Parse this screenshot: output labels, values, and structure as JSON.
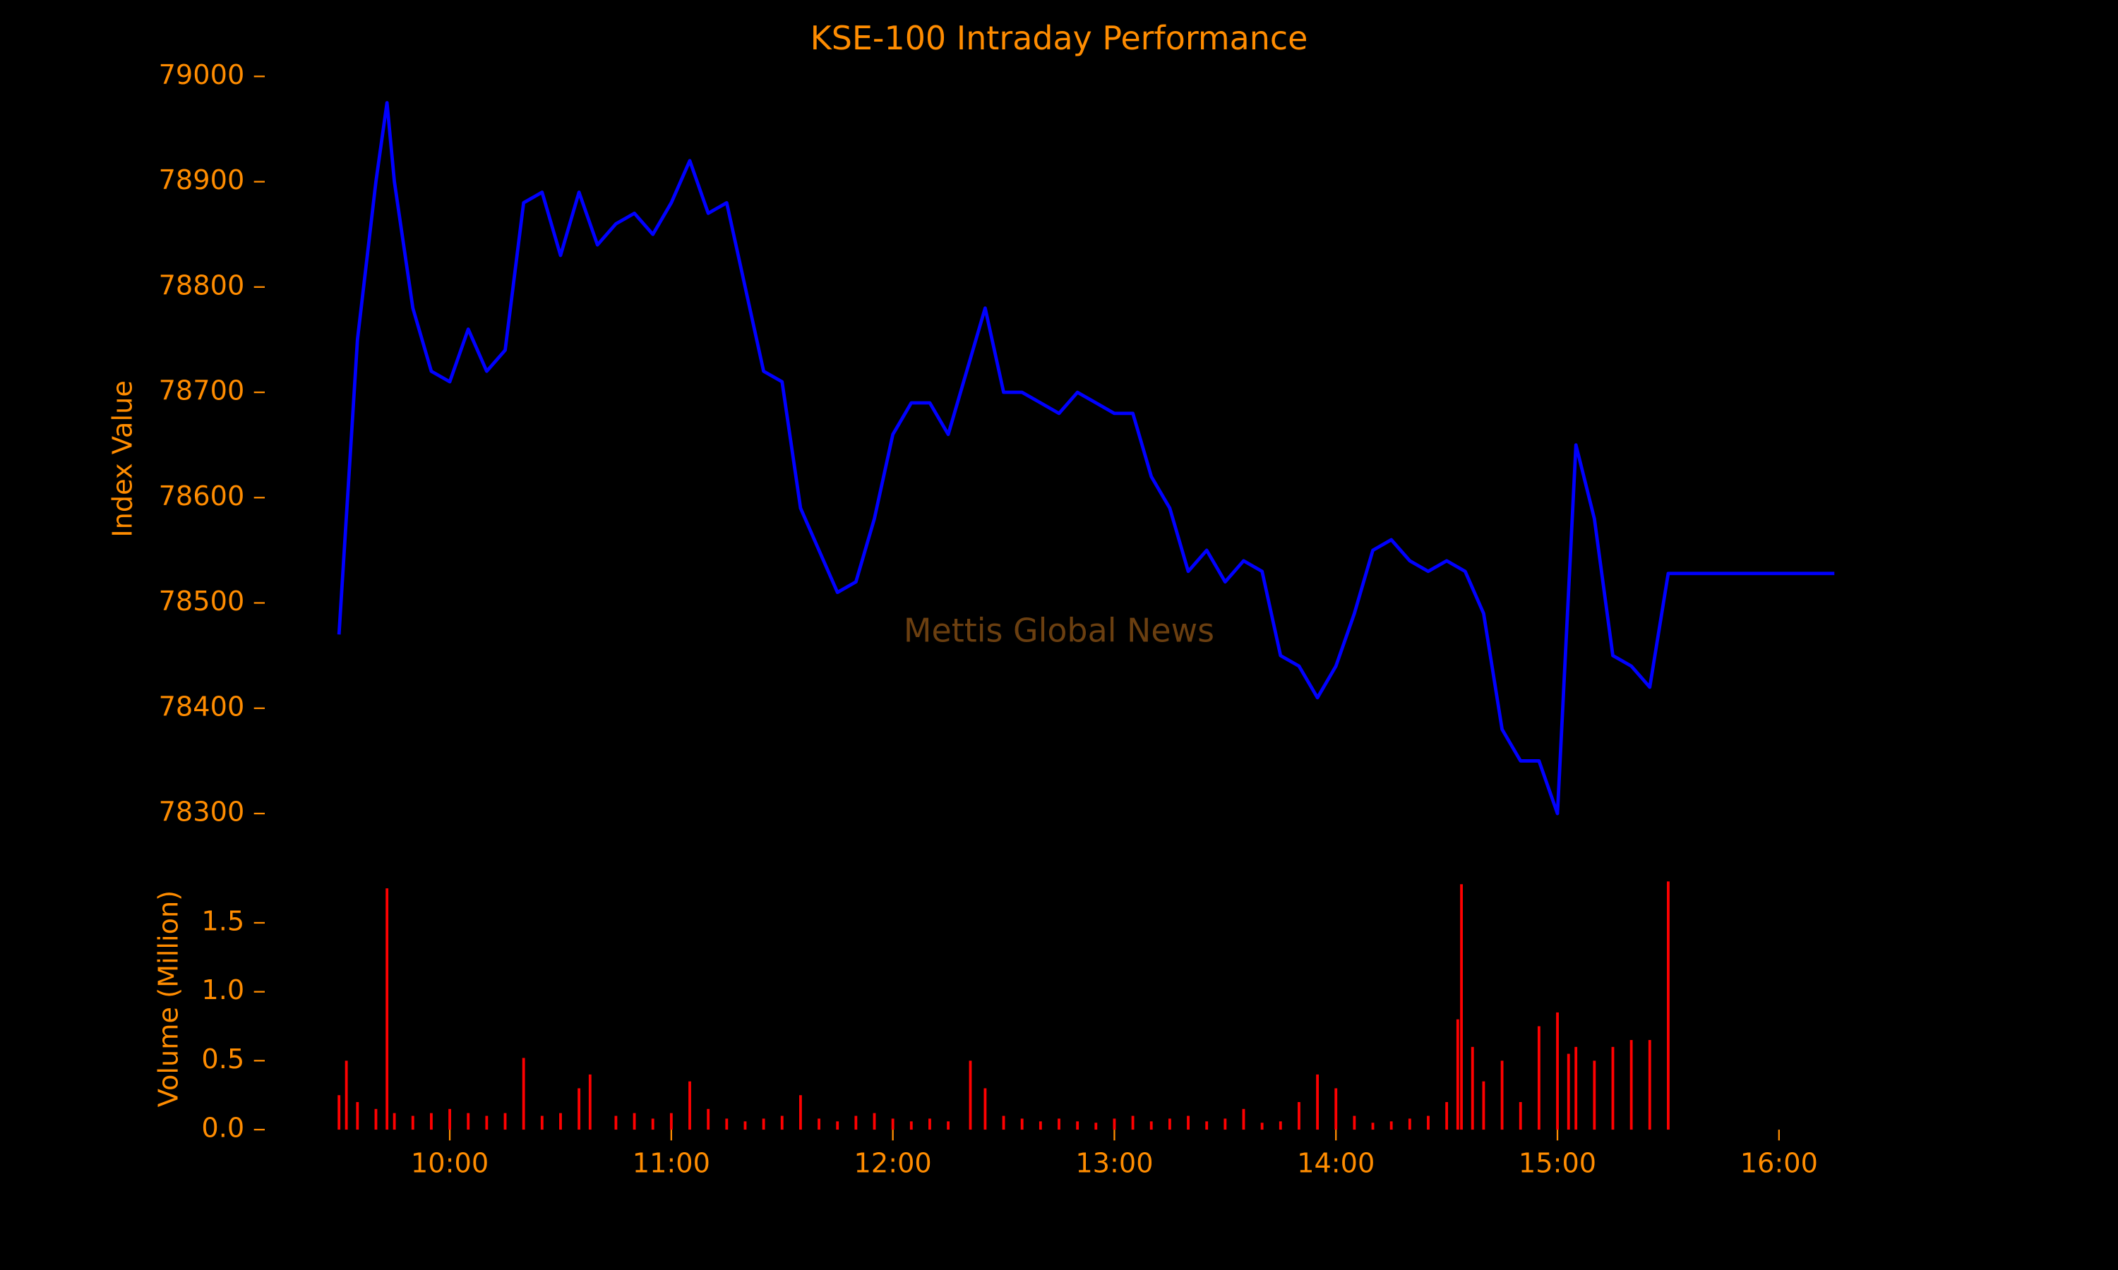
{
  "chart_data": [
    {
      "type": "line",
      "title": "KSE-100 Intraday Performance",
      "ylabel": "Index Value",
      "annotation": "Mettis Global News",
      "x": [
        "09:30",
        "09:35",
        "09:40",
        "09:43",
        "09:45",
        "09:50",
        "09:55",
        "10:00",
        "10:05",
        "10:10",
        "10:15",
        "10:20",
        "10:25",
        "10:30",
        "10:35",
        "10:40",
        "10:45",
        "10:50",
        "10:55",
        "11:00",
        "11:05",
        "11:10",
        "11:15",
        "11:20",
        "11:25",
        "11:30",
        "11:35",
        "11:40",
        "11:45",
        "11:50",
        "11:55",
        "12:00",
        "12:05",
        "12:10",
        "12:15",
        "12:20",
        "12:25",
        "12:30",
        "12:35",
        "12:40",
        "12:45",
        "12:50",
        "12:55",
        "13:00",
        "13:05",
        "13:10",
        "13:15",
        "13:20",
        "13:25",
        "13:30",
        "13:35",
        "13:40",
        "13:45",
        "13:50",
        "13:55",
        "14:00",
        "14:05",
        "14:10",
        "14:15",
        "14:20",
        "14:25",
        "14:30",
        "14:35",
        "14:40",
        "14:45",
        "14:50",
        "14:55",
        "15:00",
        "15:05",
        "15:10",
        "15:15",
        "15:20",
        "15:25",
        "15:30",
        "16:15"
      ],
      "series": [
        {
          "name": "KSE-100",
          "color": "#0000ff",
          "values": [
            78470,
            78750,
            78900,
            78975,
            78900,
            78780,
            78720,
            78710,
            78760,
            78720,
            78740,
            78880,
            78890,
            78830,
            78890,
            78840,
            78860,
            78870,
            78850,
            78880,
            78920,
            78870,
            78880,
            78800,
            78720,
            78710,
            78590,
            78550,
            78510,
            78520,
            78580,
            78660,
            78690,
            78690,
            78660,
            78720,
            78780,
            78700,
            78700,
            78690,
            78680,
            78700,
            78690,
            78680,
            78680,
            78620,
            78590,
            78530,
            78550,
            78520,
            78540,
            78530,
            78450,
            78440,
            78410,
            78440,
            78490,
            78550,
            78560,
            78540,
            78530,
            78540,
            78530,
            78490,
            78380,
            78350,
            78350,
            78300,
            78650,
            78580,
            78450,
            78440,
            78420,
            78528,
            78528
          ]
        }
      ],
      "xlim": [
        "09:10",
        "16:35"
      ],
      "ylim": [
        78260,
        79020
      ],
      "yticks": [
        78300,
        78400,
        78500,
        78600,
        78700,
        78800,
        78900,
        79000
      ]
    },
    {
      "type": "bar",
      "ylabel": "Volume (Million)",
      "x": [
        "09:30",
        "09:32",
        "09:35",
        "09:40",
        "09:43",
        "09:45",
        "09:50",
        "09:55",
        "10:00",
        "10:05",
        "10:10",
        "10:15",
        "10:20",
        "10:25",
        "10:30",
        "10:35",
        "10:38",
        "10:45",
        "10:50",
        "10:55",
        "11:00",
        "11:05",
        "11:10",
        "11:15",
        "11:20",
        "11:25",
        "11:30",
        "11:35",
        "11:40",
        "11:45",
        "11:50",
        "11:55",
        "12:00",
        "12:05",
        "12:10",
        "12:15",
        "12:21",
        "12:25",
        "12:30",
        "12:35",
        "12:40",
        "12:45",
        "12:50",
        "12:55",
        "13:00",
        "13:05",
        "13:10",
        "13:15",
        "13:20",
        "13:25",
        "13:30",
        "13:35",
        "13:40",
        "13:45",
        "13:50",
        "13:55",
        "14:00",
        "14:05",
        "14:10",
        "14:15",
        "14:20",
        "14:25",
        "14:30",
        "14:33",
        "14:34",
        "14:37",
        "14:40",
        "14:45",
        "14:50",
        "14:55",
        "15:00",
        "15:03",
        "15:05",
        "15:10",
        "15:15",
        "15:20",
        "15:25",
        "15:30"
      ],
      "series": [
        {
          "name": "Volume",
          "color": "#ff0000",
          "values": [
            0.25,
            0.5,
            0.2,
            0.15,
            1.75,
            0.12,
            0.1,
            0.12,
            0.15,
            0.12,
            0.1,
            0.12,
            0.52,
            0.1,
            0.12,
            0.3,
            0.4,
            0.1,
            0.12,
            0.08,
            0.12,
            0.35,
            0.15,
            0.08,
            0.06,
            0.08,
            0.1,
            0.25,
            0.08,
            0.06,
            0.1,
            0.12,
            0.08,
            0.06,
            0.08,
            0.06,
            0.5,
            0.3,
            0.1,
            0.08,
            0.06,
            0.08,
            0.06,
            0.05,
            0.08,
            0.1,
            0.06,
            0.08,
            0.1,
            0.06,
            0.08,
            0.15,
            0.05,
            0.06,
            0.2,
            0.4,
            0.3,
            0.1,
            0.05,
            0.06,
            0.08,
            0.1,
            0.2,
            0.8,
            1.78,
            0.6,
            0.35,
            0.5,
            0.2,
            0.75,
            0.85,
            0.55,
            0.6,
            0.5,
            0.6,
            0.65,
            0.65,
            1.8
          ]
        }
      ],
      "xlim": [
        "09:10",
        "16:35"
      ],
      "ylim": [
        0,
        1.85
      ],
      "yticks": [
        {
          "value": 0,
          "label": "0.0"
        },
        {
          "value": 0.5,
          "label": "0.5"
        },
        {
          "value": 1,
          "label": "1.0"
        },
        {
          "value": 1.5,
          "label": "1.5"
        }
      ],
      "xticks": [
        "10:00",
        "11:00",
        "12:00",
        "13:00",
        "14:00",
        "15:00",
        "16:00"
      ]
    }
  ]
}
